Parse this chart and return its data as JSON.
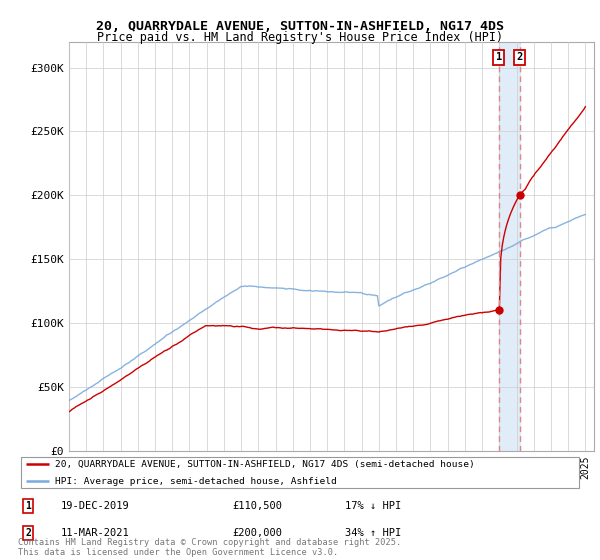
{
  "title_line1": "20, QUARRYDALE AVENUE, SUTTON-IN-ASHFIELD, NG17 4DS",
  "title_line2": "Price paid vs. HM Land Registry's House Price Index (HPI)",
  "background_color": "#ffffff",
  "grid_color": "#cccccc",
  "line1_color": "#cc0000",
  "line2_color": "#7aabdc",
  "shade_color": "#e0ecf8",
  "vline_color": "#dd8888",
  "annotation1": [
    "1",
    "19-DEC-2019",
    "£110,500",
    "17% ↓ HPI"
  ],
  "annotation2": [
    "2",
    "11-MAR-2021",
    "£200,000",
    "34% ↑ HPI"
  ],
  "legend1_label": "20, QUARRYDALE AVENUE, SUTTON-IN-ASHFIELD, NG17 4DS (semi-detached house)",
  "legend2_label": "HPI: Average price, semi-detached house, Ashfield",
  "footer": "Contains HM Land Registry data © Crown copyright and database right 2025.\nThis data is licensed under the Open Government Licence v3.0.",
  "ylim": [
    0,
    320000
  ],
  "yticks": [
    0,
    50000,
    100000,
    150000,
    200000,
    250000,
    300000
  ],
  "ytick_labels": [
    "£0",
    "£50K",
    "£100K",
    "£150K",
    "£200K",
    "£250K",
    "£300K"
  ],
  "year_sale1": 2019.96,
  "year_sale2": 2021.18,
  "price_sale1": 110500,
  "price_sale2": 200000
}
